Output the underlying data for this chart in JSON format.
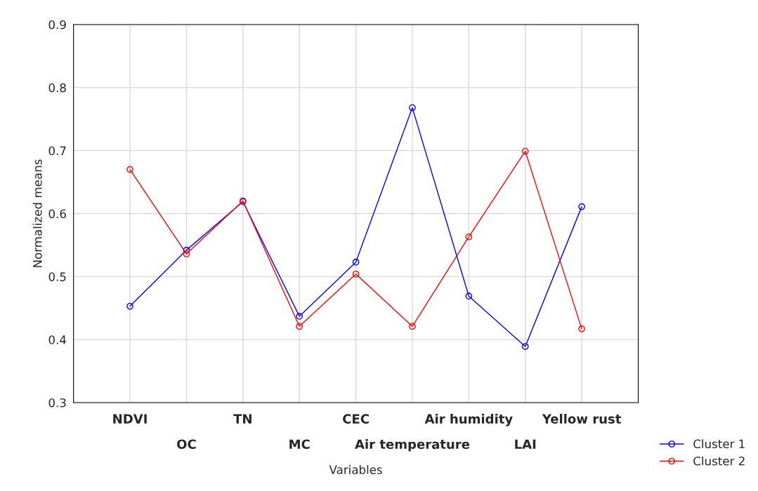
{
  "chart_data": {
    "type": "line",
    "xlabel": "Variables",
    "ylabel": "Normalized means",
    "categories": [
      "NDVI",
      "OC",
      "TN",
      "MC",
      "CEC",
      "Air temperature",
      "Air humidity",
      "LAI",
      "Yellow rust"
    ],
    "series": [
      {
        "name": "Cluster 1",
        "color": "#0000ff",
        "values": [
          0.453,
          0.542,
          0.619,
          0.437,
          0.523,
          0.768,
          0.469,
          0.389,
          0.611
        ]
      },
      {
        "name": "Cluster 2",
        "color": "#ff0000",
        "values": [
          0.67,
          0.536,
          0.62,
          0.421,
          0.504,
          0.421,
          0.563,
          0.699,
          0.417
        ]
      }
    ],
    "ylim": [
      0.3,
      0.9
    ],
    "yticks": [
      0.3,
      0.4,
      0.5,
      0.6,
      0.7,
      0.8,
      0.9
    ],
    "grid": true,
    "legend": "bottom right",
    "marker": "circle",
    "line_style": "solid"
  }
}
